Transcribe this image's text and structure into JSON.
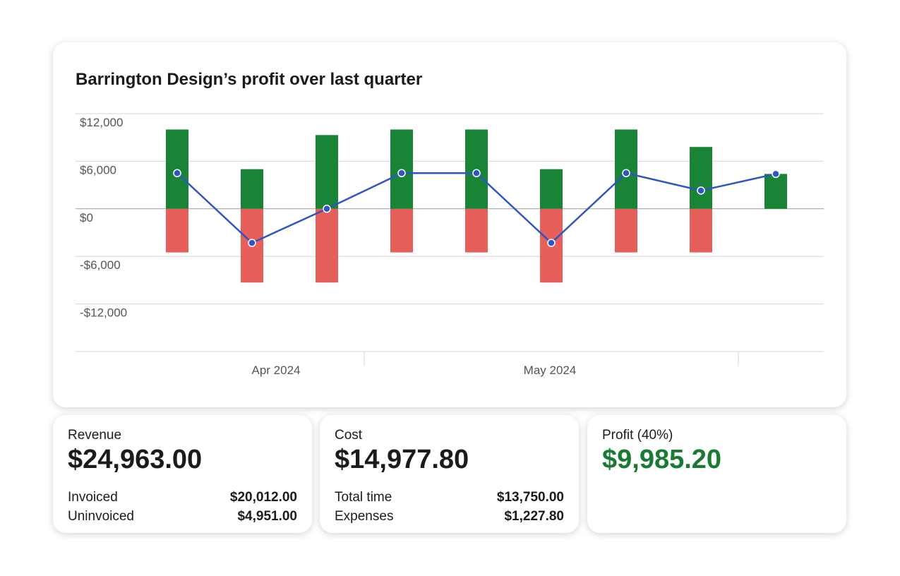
{
  "chart_data": {
    "type": "bar-line",
    "title": "Barrington Design’s profit over last quarter",
    "categories": [
      null,
      null,
      null,
      null,
      null,
      null,
      null,
      null,
      null
    ],
    "month_labels": [
      "Apr 2024",
      "May 2024"
    ],
    "series": [
      {
        "type": "bar",
        "color": "#1a8436",
        "values": [
          10000,
          5000,
          9300,
          10000,
          10000,
          5000,
          10000,
          7800,
          4400
        ]
      },
      {
        "type": "bar",
        "color": "#e65f5a",
        "values": [
          -5500,
          -9300,
          -9300,
          -5500,
          -5500,
          -9300,
          -5500,
          -5500,
          0
        ]
      },
      {
        "type": "line",
        "color": "#2f55c4",
        "values": [
          4500,
          -4300,
          0,
          4500,
          4500,
          -4300,
          4500,
          2300,
          4400
        ]
      }
    ],
    "ylim": [
      -18000,
      12000
    ],
    "yticks": [
      {
        "value": 12000,
        "label": "$12,000"
      },
      {
        "value": 6000,
        "label": "$6,000"
      },
      {
        "value": 0,
        "label": "$0"
      },
      {
        "value": -6000,
        "label": "-$6,000"
      },
      {
        "value": -12000,
        "label": "-$12,000"
      },
      -18000
    ],
    "grid": true
  },
  "cards": [
    {
      "title": "Revenue",
      "amount": "$24,963.00",
      "rows": [
        [
          "Invoiced",
          "$20,012.00"
        ],
        [
          "Uninvoiced",
          "$4,951.00"
        ]
      ]
    },
    {
      "title": "Cost",
      "amount": "$14,977.80",
      "rows": [
        [
          "Total time",
          "$13,750.00"
        ],
        [
          "Expenses",
          "$1,227.80"
        ]
      ]
    },
    {
      "title": "Profit (40%)",
      "amount": "$9,985.20"
    }
  ]
}
